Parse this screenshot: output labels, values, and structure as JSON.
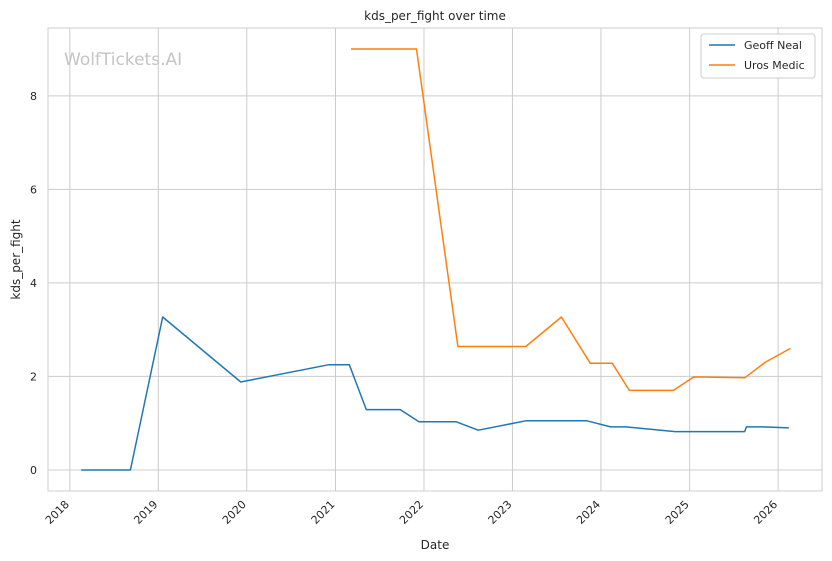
{
  "watermark": "WolfTickets.AI",
  "chart_data": {
    "type": "line",
    "title": "kds_per_fight over time",
    "xlabel": "Date",
    "ylabel": "kds_per_fight",
    "x_axis": "date",
    "xlim": [
      "2017-10-03",
      "2026-07-01"
    ],
    "ylim": [
      -0.45,
      9.45
    ],
    "x_ticks": [
      "2018",
      "2019",
      "2020",
      "2021",
      "2022",
      "2023",
      "2024",
      "2025",
      "2026"
    ],
    "y_ticks": [
      0,
      2,
      4,
      6,
      8
    ],
    "grid": true,
    "legend_position": "top-right",
    "series": [
      {
        "name": "Geoff Neal",
        "color": "#1f77b4",
        "points": [
          [
            "2018-02-17",
            0.0
          ],
          [
            "2018-09-08",
            0.0
          ],
          [
            "2019-01-19",
            3.27
          ],
          [
            "2019-12-07",
            1.88
          ],
          [
            "2020-12-05",
            2.25
          ],
          [
            "2021-02-27",
            2.25
          ],
          [
            "2021-05-08",
            1.29
          ],
          [
            "2021-09-25",
            1.29
          ],
          [
            "2021-12-11",
            1.03
          ],
          [
            "2022-05-14",
            1.03
          ],
          [
            "2022-08-13",
            0.85
          ],
          [
            "2023-02-25",
            1.05
          ],
          [
            "2023-11-04",
            1.05
          ],
          [
            "2024-02-10",
            0.92
          ],
          [
            "2024-04-13",
            0.92
          ],
          [
            "2024-11-02",
            0.82
          ],
          [
            "2025-08-16",
            0.82
          ],
          [
            "2025-08-23",
            0.92
          ],
          [
            "2025-11-01",
            0.92
          ],
          [
            "2026-02-14",
            0.9
          ]
        ]
      },
      {
        "name": "Uros Medic",
        "color": "#ff7f0e",
        "points": [
          [
            "2021-03-06",
            9.0
          ],
          [
            "2021-10-09",
            9.0
          ],
          [
            "2021-12-01",
            9.0
          ],
          [
            "2022-05-21",
            2.64
          ],
          [
            "2023-02-25",
            2.64
          ],
          [
            "2023-07-22",
            3.27
          ],
          [
            "2023-11-18",
            2.28
          ],
          [
            "2024-02-17",
            2.28
          ],
          [
            "2024-04-27",
            1.7
          ],
          [
            "2024-10-26",
            1.7
          ],
          [
            "2025-01-18",
            1.99
          ],
          [
            "2025-08-16",
            1.97
          ],
          [
            "2025-11-08",
            2.3
          ],
          [
            "2026-02-21",
            2.6
          ]
        ]
      }
    ]
  }
}
